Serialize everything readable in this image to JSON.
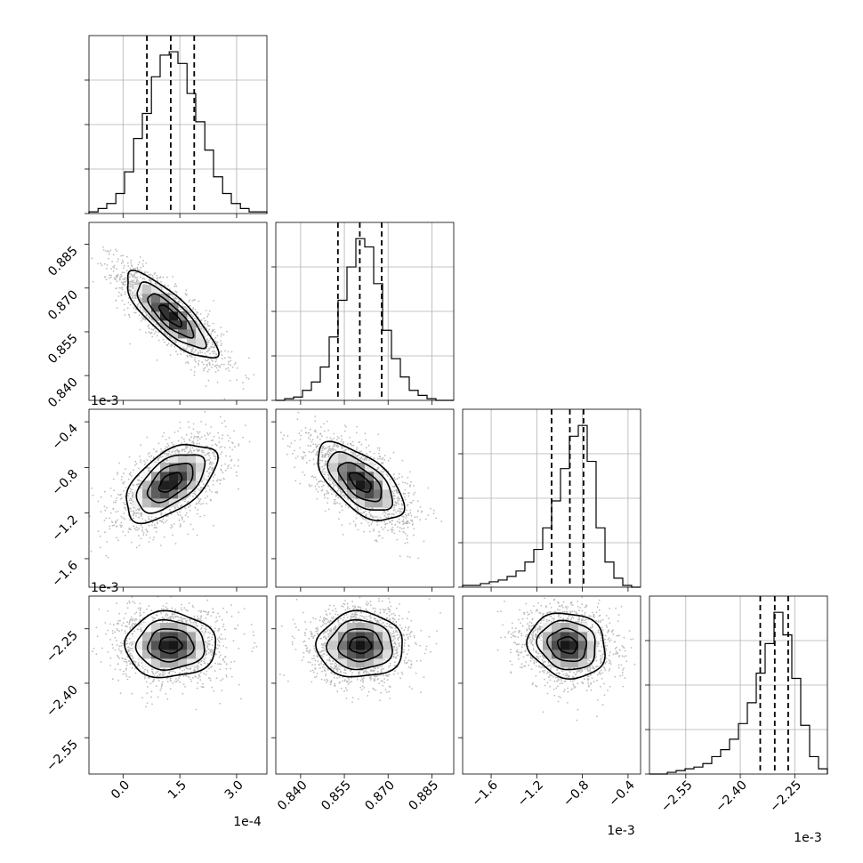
{
  "chart_data": {
    "type": "corner",
    "parameters": [
      {
        "range": [
          -9e-05,
          0.00038
        ],
        "ticks": [
          0.0,
          0.00015,
          0.0003
        ],
        "tick_labels": [
          "0.0",
          "1.5",
          "3.0"
        ],
        "offset_text": "1e-4",
        "mean": 0.000125,
        "sd": 6e-05,
        "quantiles": [
          6.3e-05,
          0.000126,
          0.000188
        ]
      },
      {
        "range": [
          0.8315,
          0.8925
        ],
        "ticks": [
          0.84,
          0.855,
          0.87,
          0.885
        ],
        "tick_labels": [
          "0.840",
          "0.855",
          "0.870",
          "0.885"
        ],
        "offset_text": "",
        "mean": 0.8605,
        "sd": 0.0074,
        "quantiles": [
          0.8528,
          0.8603,
          0.8678
        ]
      },
      {
        "range": [
          -0.00185,
          -0.00029
        ],
        "ticks": [
          -0.0016,
          -0.0012,
          -0.0008,
          -0.0004
        ],
        "tick_labels": [
          "−1.6",
          "−1.2",
          "−0.8",
          "−0.4"
        ],
        "offset_text": "1e-3",
        "mean": -0.00093,
        "sd": 0.00017,
        "quantiles": [
          -0.00107,
          -0.00091,
          -0.00079
        ]
      },
      {
        "range": [
          -0.00265,
          -0.00216
        ],
        "ticks": [
          -0.00255,
          -0.0024,
          -0.00225
        ],
        "tick_labels": [
          "−2.55",
          "−2.40",
          "−2.25"
        ],
        "offset_text": "1e-3",
        "mean": -0.002295,
        "sd": 4.5e-05,
        "quantiles": [
          -0.002345,
          -0.002305,
          -0.002268
        ]
      }
    ],
    "histograms": [
      {
        "bins": [
          -9e-05,
          -6.6e-05,
          -4.3e-05,
          -1.9e-05,
          4e-06,
          2.8e-05,
          5.1e-05,
          7.5e-05,
          9.8e-05,
          0.000122,
          0.000145,
          0.000169,
          0.000192,
          0.000216,
          0.000239,
          0.000263,
          0.000286,
          0.00031,
          0.000333,
          0.000357,
          0.00038
        ],
        "counts": [
          1,
          3,
          6,
          12,
          25,
          45,
          60,
          82,
          95,
          97,
          90,
          72,
          55,
          38,
          22,
          12,
          6,
          3,
          1,
          1
        ]
      },
      {
        "bins": [
          0.8315,
          0.83455,
          0.8376,
          0.84065,
          0.8437,
          0.84675,
          0.8498,
          0.85285,
          0.8559,
          0.85895,
          0.862,
          0.86505,
          0.8681,
          0.87115,
          0.8742,
          0.87725,
          0.8803,
          0.88335,
          0.8864,
          0.88945,
          0.8925
        ],
        "counts": [
          0,
          1,
          2,
          6,
          11,
          20,
          38,
          60,
          80,
          97,
          92,
          70,
          42,
          25,
          14,
          6,
          3,
          1,
          0,
          0
        ]
      },
      {
        "bins": [
          -0.00185,
          -0.001772,
          -0.001694,
          -0.001616,
          -0.001538,
          -0.00146,
          -0.001382,
          -0.001304,
          -0.001226,
          -0.001148,
          -0.00107,
          -0.000992,
          -0.000914,
          -0.000836,
          -0.000758,
          -0.00068,
          -0.000602,
          -0.000524,
          -0.000446,
          -0.000368,
          -0.00029
        ],
        "counts": [
          1,
          1,
          2,
          3,
          4,
          6,
          9,
          14,
          21,
          33,
          48,
          66,
          84,
          90,
          70,
          33,
          14,
          5,
          1,
          0
        ]
      },
      {
        "bins": [
          -0.00265,
          -0.0026255,
          -0.002601,
          -0.0025765,
          -0.002552,
          -0.0025275,
          -0.002503,
          -0.0024785,
          -0.002454,
          -0.0024295,
          -0.002405,
          -0.0023805,
          -0.002356,
          -0.0023315,
          -0.002307,
          -0.0022825,
          -0.002258,
          -0.0022335,
          -0.002209,
          -0.0021845,
          -0.00216
        ],
        "counts": [
          0,
          0,
          1,
          2,
          3,
          4,
          6,
          10,
          14,
          20,
          29,
          41,
          58,
          75,
          93,
          80,
          55,
          28,
          10,
          3
        ]
      }
    ],
    "pairs": [
      {
        "row": 1,
        "col": 0,
        "correlation": -0.82
      },
      {
        "row": 2,
        "col": 0,
        "correlation": 0.55
      },
      {
        "row": 2,
        "col": 1,
        "correlation": -0.62
      },
      {
        "row": 3,
        "col": 0,
        "correlation": 0.0
      },
      {
        "row": 3,
        "col": 1,
        "correlation": 0.0
      },
      {
        "row": 3,
        "col": 2,
        "correlation": -0.12
      }
    ],
    "contour_levels_sigma": [
      0.5,
      1.0,
      1.5,
      2.0
    ],
    "grid": true,
    "quantile_style": "dashed"
  }
}
